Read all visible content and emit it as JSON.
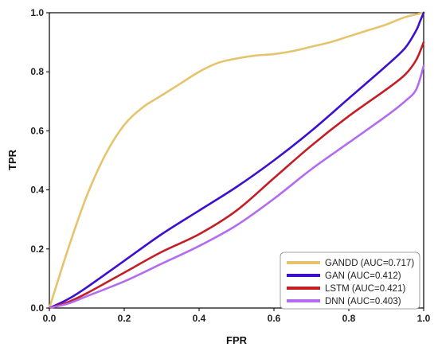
{
  "chart_data": {
    "type": "line",
    "title": "",
    "xlabel": "FPR",
    "ylabel": "TPR",
    "xlim": [
      0,
      1
    ],
    "ylim": [
      0,
      1
    ],
    "grid": false,
    "legend_position": "bottom-right",
    "x_ticks": [
      {
        "value": 0.0,
        "label": "0.0"
      },
      {
        "value": 0.2,
        "label": "0.2"
      },
      {
        "value": 0.4,
        "label": "0.4"
      },
      {
        "value": 0.6,
        "label": "0.6"
      },
      {
        "value": 0.8,
        "label": "0.8"
      },
      {
        "value": 1.0,
        "label": "1.0"
      }
    ],
    "y_ticks": [
      {
        "value": 0.0,
        "label": "0.0"
      },
      {
        "value": 0.2,
        "label": "0.2"
      },
      {
        "value": 0.4,
        "label": "0.4"
      },
      {
        "value": 0.6,
        "label": "0.6"
      },
      {
        "value": 0.8,
        "label": "0.8"
      },
      {
        "value": 1.0,
        "label": "1.0"
      }
    ],
    "series": [
      {
        "name": "GANDD (AUC=0.717)",
        "color": "#e6c46e",
        "x": [
          0,
          0.05,
          0.1,
          0.15,
          0.2,
          0.25,
          0.3,
          0.35,
          0.4,
          0.45,
          0.5,
          0.55,
          0.6,
          0.65,
          0.7,
          0.75,
          0.8,
          0.85,
          0.9,
          0.95,
          1.0
        ],
        "y": [
          0,
          0.2,
          0.38,
          0.52,
          0.62,
          0.68,
          0.72,
          0.76,
          0.8,
          0.83,
          0.845,
          0.855,
          0.86,
          0.87,
          0.885,
          0.9,
          0.92,
          0.94,
          0.96,
          0.985,
          1.0
        ]
      },
      {
        "name": "GAN (AUC=0.412)",
        "color": "#3d0fcf",
        "x": [
          0,
          0.05,
          0.1,
          0.2,
          0.3,
          0.4,
          0.5,
          0.6,
          0.7,
          0.8,
          0.9,
          0.95,
          0.98,
          0.99,
          1.0
        ],
        "y": [
          0,
          0.03,
          0.07,
          0.16,
          0.25,
          0.33,
          0.41,
          0.5,
          0.6,
          0.71,
          0.82,
          0.88,
          0.94,
          0.97,
          1.0
        ]
      },
      {
        "name": "LSTM (AUC=0.421)",
        "color": "#c41e25",
        "x": [
          0,
          0.05,
          0.1,
          0.2,
          0.3,
          0.4,
          0.5,
          0.6,
          0.7,
          0.8,
          0.9,
          0.95,
          0.98,
          1.0
        ],
        "y": [
          0,
          0.02,
          0.05,
          0.12,
          0.19,
          0.25,
          0.33,
          0.44,
          0.55,
          0.65,
          0.74,
          0.79,
          0.84,
          0.9
        ]
      },
      {
        "name": "DNN (AUC=0.403)",
        "color": "#b36cf0",
        "x": [
          0,
          0.05,
          0.1,
          0.2,
          0.3,
          0.4,
          0.5,
          0.6,
          0.7,
          0.8,
          0.9,
          0.95,
          0.98,
          1.0
        ],
        "y": [
          0,
          0.015,
          0.04,
          0.09,
          0.15,
          0.21,
          0.28,
          0.37,
          0.47,
          0.56,
          0.65,
          0.7,
          0.74,
          0.82
        ]
      }
    ]
  }
}
